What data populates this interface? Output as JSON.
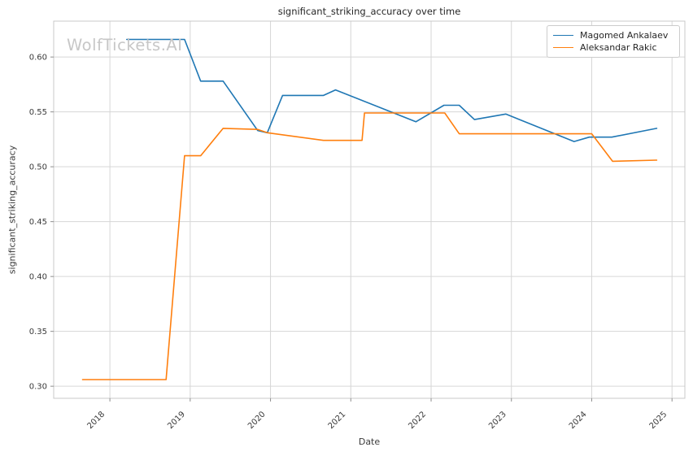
{
  "watermark": {
    "text": "WolfTickets.AI"
  },
  "chart_data": {
    "type": "line",
    "title": "significant_striking_accuracy over time",
    "xlabel": "Date",
    "ylabel": "significant_striking_accuracy",
    "grid": true,
    "legend_position": "upper right",
    "x_domain": [
      2017.3,
      2025.16
    ],
    "y_domain": [
      0.289,
      0.6327
    ],
    "x_ticks": [
      2018,
      2019,
      2020,
      2021,
      2022,
      2023,
      2024,
      2025
    ],
    "y_ticks": [
      0.3,
      0.35,
      0.4,
      0.45,
      0.5,
      0.55,
      0.6
    ],
    "series": [
      {
        "name": "Magomed Ankalaev",
        "color": "#1f77b4",
        "points": [
          [
            2018.21,
            0.616
          ],
          [
            2018.93,
            0.616
          ],
          [
            2019.13,
            0.578
          ],
          [
            2019.41,
            0.578
          ],
          [
            2019.84,
            0.533
          ],
          [
            2019.96,
            0.531
          ],
          [
            2020.15,
            0.565
          ],
          [
            2020.66,
            0.565
          ],
          [
            2020.81,
            0.57
          ],
          [
            2021.81,
            0.541
          ],
          [
            2022.16,
            0.556
          ],
          [
            2022.35,
            0.556
          ],
          [
            2022.54,
            0.543
          ],
          [
            2022.93,
            0.548
          ],
          [
            2023.78,
            0.523
          ],
          [
            2023.97,
            0.527
          ],
          [
            2024.25,
            0.527
          ],
          [
            2024.81,
            0.535
          ]
        ]
      },
      {
        "name": "Aleksandar Rakic",
        "color": "#ff7f0e",
        "points": [
          [
            2017.66,
            0.306
          ],
          [
            2018.7,
            0.306
          ],
          [
            2018.93,
            0.51
          ],
          [
            2019.13,
            0.51
          ],
          [
            2019.41,
            0.535
          ],
          [
            2019.84,
            0.534
          ],
          [
            2019.96,
            0.531
          ],
          [
            2020.66,
            0.524
          ],
          [
            2021.14,
            0.524
          ],
          [
            2021.17,
            0.549
          ],
          [
            2022.17,
            0.549
          ],
          [
            2022.35,
            0.53
          ],
          [
            2024.0,
            0.53
          ],
          [
            2024.26,
            0.505
          ],
          [
            2024.81,
            0.506
          ]
        ]
      }
    ]
  },
  "style_colors": {
    "grid": "#d6d6d6",
    "spine": "#c8c8c8",
    "tick_mark": "#8f8f8f",
    "tick_text": "#3a3a3a"
  }
}
